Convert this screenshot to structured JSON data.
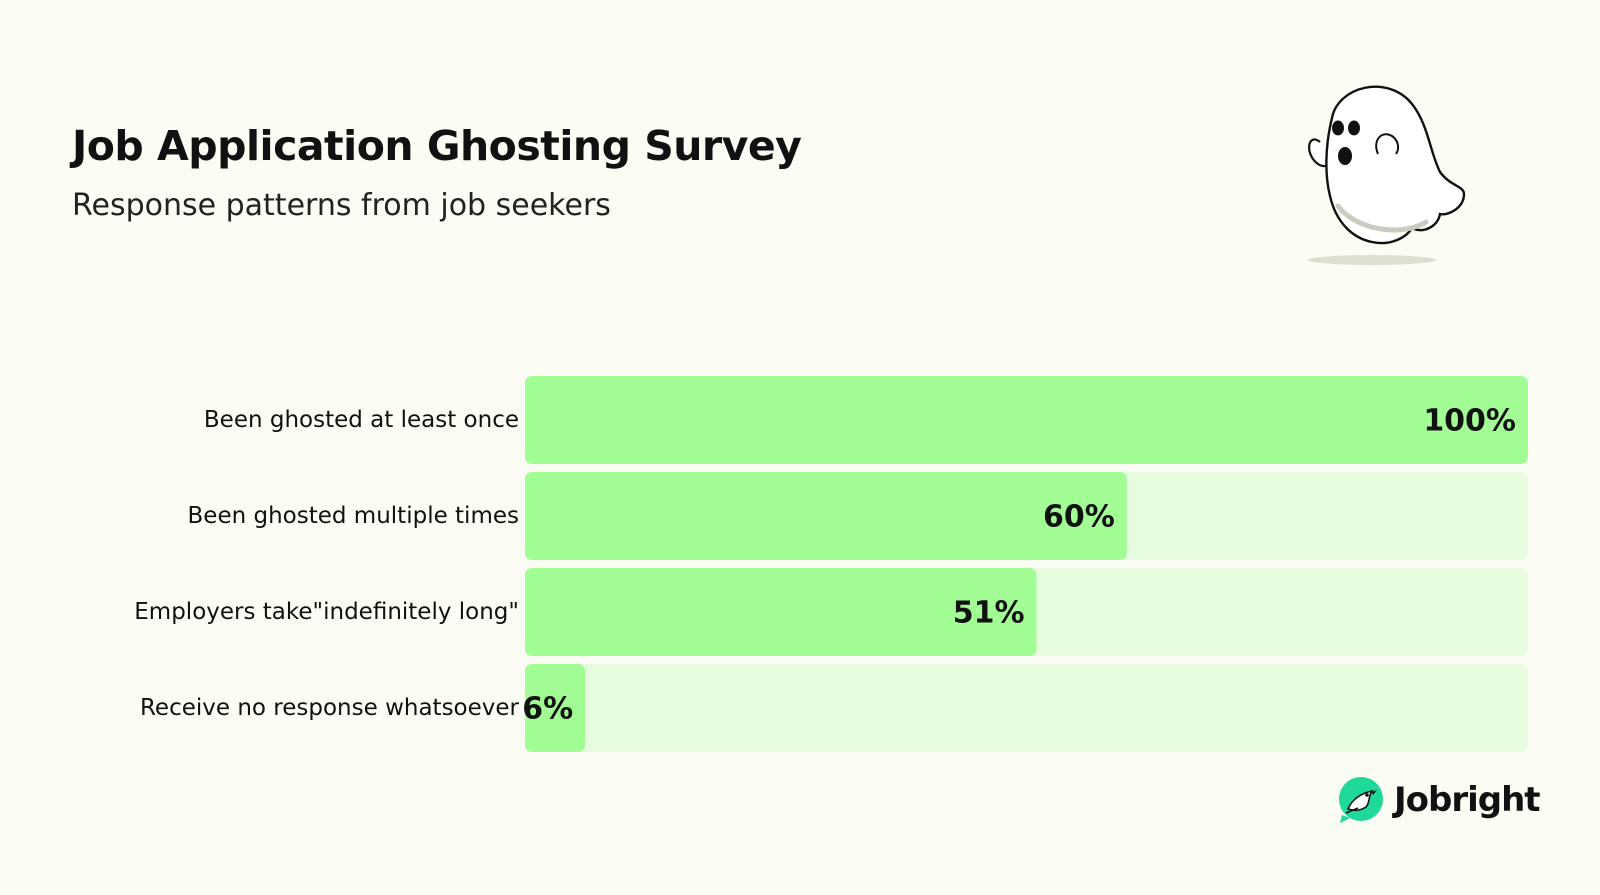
{
  "header": {
    "title": "Job Application Ghosting Survey",
    "subtitle": "Response patterns from job seekers"
  },
  "illustration": {
    "icon": "ghost-icon"
  },
  "brand": {
    "name": "Jobright",
    "icon": "jobright-bird-logo-icon",
    "color": "#1ed99a"
  },
  "colors": {
    "background": "#fbfcf3",
    "bar": "#a3fd95",
    "track": "#e7fcdf",
    "text": "#111111"
  },
  "chart_data": {
    "type": "bar",
    "orientation": "horizontal",
    "categories": [
      "Been ghosted at least once",
      "Been ghosted multiple times",
      "Employers take\"indefinitely long\"",
      "Receive no response whatsoever"
    ],
    "values": [
      100,
      60,
      51,
      6
    ],
    "value_labels": [
      "100%",
      "60%",
      "51%",
      "6%"
    ],
    "xlim": [
      0,
      100
    ],
    "grid": false,
    "legend": "none"
  }
}
